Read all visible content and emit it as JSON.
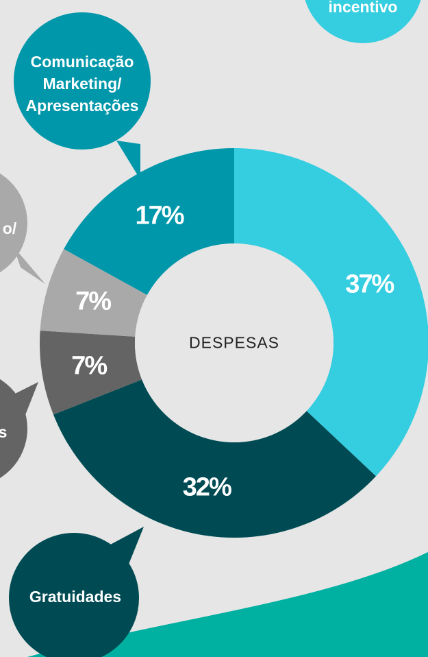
{
  "chart_data": {
    "type": "donut",
    "center_label": "DESPESAS",
    "categories": [
      "incentivo",
      "Gratuidades",
      "s",
      "o/",
      "Comunicação Marketing/ Apresentações"
    ],
    "values": [
      37,
      32,
      7,
      7,
      17
    ],
    "value_labels": [
      "37%",
      "32%",
      "7%",
      "7%",
      "17%"
    ],
    "colors": [
      "#35cde0",
      "#004b53",
      "#646464",
      "#a9a9a9",
      "#0097aa"
    ]
  }
}
